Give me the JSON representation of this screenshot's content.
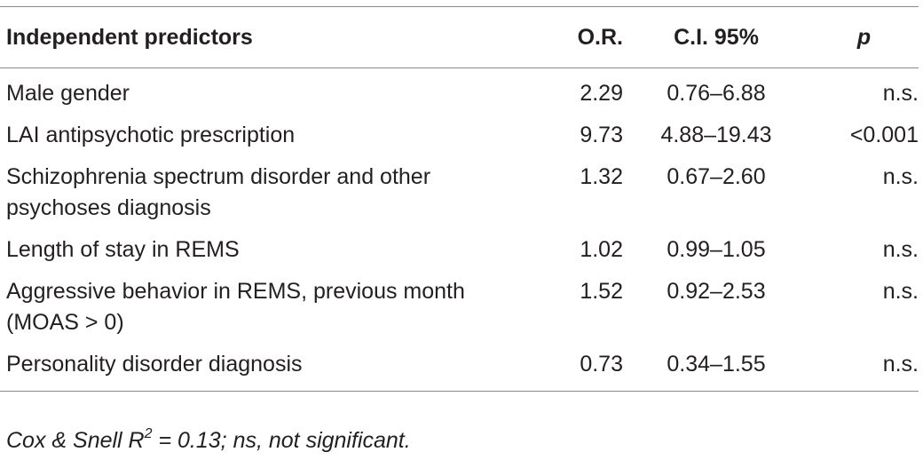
{
  "table": {
    "headers": {
      "predictor": "Independent predictors",
      "or": "O.R.",
      "ci": "C.I. 95%",
      "p": "p"
    },
    "rows": [
      {
        "predictor": "Male gender",
        "or": "2.29",
        "ci": "0.76–6.88",
        "p": "n.s."
      },
      {
        "predictor": "LAI antipsychotic prescription",
        "or": "9.73",
        "ci": "4.88–19.43",
        "p": "<0.001"
      },
      {
        "predictor": "Schizophrenia spectrum disorder and other psychoses diagnosis",
        "or": "1.32",
        "ci": "0.67–2.60",
        "p": "n.s."
      },
      {
        "predictor": "Length of stay in REMS",
        "or": "1.02",
        "ci": "0.99–1.05",
        "p": "n.s."
      },
      {
        "predictor": "Aggressive behavior in REMS, previous month (MOAS > 0)",
        "or": "1.52",
        "ci": "0.92–2.53",
        "p": "n.s."
      },
      {
        "predictor": "Personality disorder diagnosis",
        "or": "0.73",
        "ci": "0.34–1.55",
        "p": "n.s."
      }
    ]
  },
  "footnote": {
    "prefix": "Cox & Snell R",
    "superscript": "2",
    "suffix": " = 0.13; ns, not significant."
  }
}
